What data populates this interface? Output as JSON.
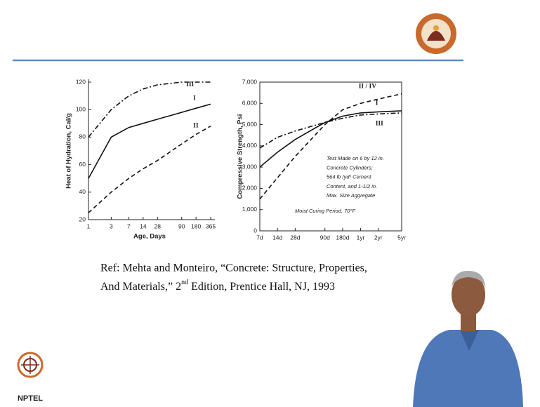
{
  "chart_data": [
    {
      "type": "line",
      "x_log": true,
      "y_label": "Heat of Hydration, Cal/g",
      "x_label": "Age, Days",
      "x": [
        1,
        3,
        7,
        14,
        28,
        90,
        180,
        365
      ],
      "xlim": [
        1,
        365
      ],
      "xticks": [
        1,
        3,
        7,
        14,
        28,
        90,
        180,
        365
      ],
      "ylim": [
        20,
        120
      ],
      "yticks": [
        20,
        40,
        60,
        80,
        100,
        120
      ],
      "series": [
        {
          "name": "I",
          "color": "#111111",
          "style": "solid",
          "values": [
            50,
            80,
            87,
            90,
            93,
            98,
            101,
            104
          ]
        },
        {
          "name": "II",
          "color": "#111111",
          "style": "dashed",
          "values": [
            25,
            40,
            50,
            57,
            63,
            75,
            82,
            88
          ]
        },
        {
          "name": "III",
          "color": "#111111",
          "style": "dashdot",
          "values": [
            80,
            100,
            110,
            115,
            118,
            120,
            120,
            120
          ]
        }
      ]
    },
    {
      "type": "line",
      "x_log": true,
      "y_label": "Compressive Strength, Psi",
      "x": [
        7,
        14,
        28,
        90,
        180,
        365,
        730,
        1825
      ],
      "xlim": [
        7,
        1825
      ],
      "xticks": [
        {
          "value": 7,
          "label": "7d"
        },
        {
          "value": 14,
          "label": "14d"
        },
        {
          "value": 28,
          "label": "28d"
        },
        {
          "value": 90,
          "label": "90d"
        },
        {
          "value": 180,
          "label": "180d"
        },
        {
          "value": 365,
          "label": "1yr"
        },
        {
          "value": 730,
          "label": "2yr"
        },
        {
          "value": 1825,
          "label": "5yr"
        }
      ],
      "ylim": [
        0,
        7000
      ],
      "yticks": [
        0,
        {
          "value": 1000,
          "label": "1,000"
        },
        {
          "value": 2000,
          "label": "2,000"
        },
        {
          "value": 3000,
          "label": "3,000"
        },
        {
          "value": 4000,
          "label": "4,000"
        },
        {
          "value": 5000,
          "label": "5,000"
        },
        {
          "value": 6000,
          "label": "6,000"
        },
        {
          "value": 7000,
          "label": "7,000"
        }
      ],
      "annotations": [
        "Test Made on 6 by 12 in.",
        "Concrete Cylinders;",
        "564 lb /yd³ Cement",
        "Content, and 1-1/2 in.",
        "Max. Size Aggregate",
        "Moist Curing Period, 70°F"
      ],
      "series": [
        {
          "name": "II / IV",
          "color": "#111111",
          "style": "dashed",
          "values": [
            1500,
            2500,
            3500,
            5000,
            5700,
            6000,
            6200,
            6450
          ]
        },
        {
          "name": "I",
          "color": "#111111",
          "style": "solid",
          "values": [
            3000,
            3700,
            4300,
            5100,
            5400,
            5550,
            5600,
            5650
          ]
        },
        {
          "name": "III",
          "color": "#111111",
          "style": "dashdot",
          "values": [
            3900,
            4400,
            4700,
            5100,
            5300,
            5450,
            5500,
            5550
          ]
        }
      ]
    }
  ],
  "reference": {
    "line1": "Ref: Mehta and Monteiro, “Concrete: Structure, Properties,",
    "line2_start": "And Materials,” 2",
    "superscript": "nd",
    "line2_end": " Edition, Prentice Hall, NJ, 1993"
  },
  "logo_text": "NPTEL"
}
